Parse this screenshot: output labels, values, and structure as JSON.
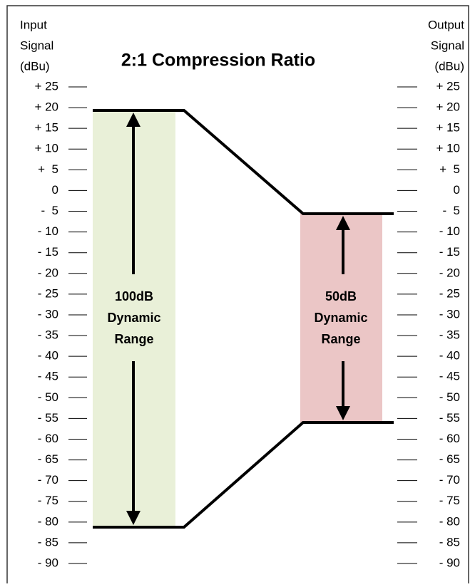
{
  "title": "2:1 Compression Ratio",
  "input_header": [
    "Input",
    "Signal",
    "(dBu)"
  ],
  "output_header": [
    "Output",
    "Signal",
    "(dBu)"
  ],
  "scale": [
    "+ 25",
    "+ 20",
    "+ 15",
    "+ 10",
    "+  5",
    "0",
    "-  5",
    "- 10",
    "- 15",
    "- 20",
    "- 25",
    "- 30",
    "- 35",
    "- 40",
    "- 45",
    "- 50",
    "- 55",
    "- 60",
    "- 65",
    "- 70",
    "- 75",
    "- 80",
    "- 85",
    "- 90"
  ],
  "input_range": [
    "100dB",
    "Dynamic",
    "Range"
  ],
  "output_range": [
    "50dB",
    "Dynamic",
    "Range"
  ]
}
